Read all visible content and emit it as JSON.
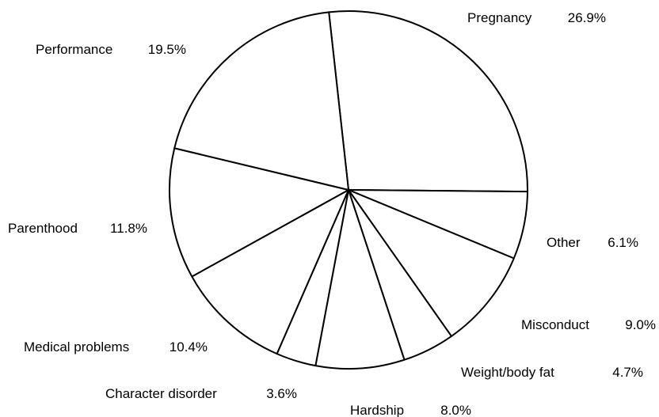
{
  "chart_data": {
    "type": "pie",
    "categories": [
      "Pregnancy",
      "Other",
      "Misconduct",
      "Weight/body fat",
      "Hardship",
      "Character disorder",
      "Medical problems",
      "Parenthood",
      "Performance"
    ],
    "values": [
      26.9,
      6.1,
      9.0,
      4.7,
      8.0,
      3.6,
      10.4,
      11.8,
      19.5
    ],
    "value_labels": [
      "26.9%",
      "6.1%",
      "9.0%",
      "4.7%",
      "8.0%",
      "3.6%",
      "10.4%",
      "11.8%",
      "19.5%"
    ],
    "color": "#ffffff"
  }
}
